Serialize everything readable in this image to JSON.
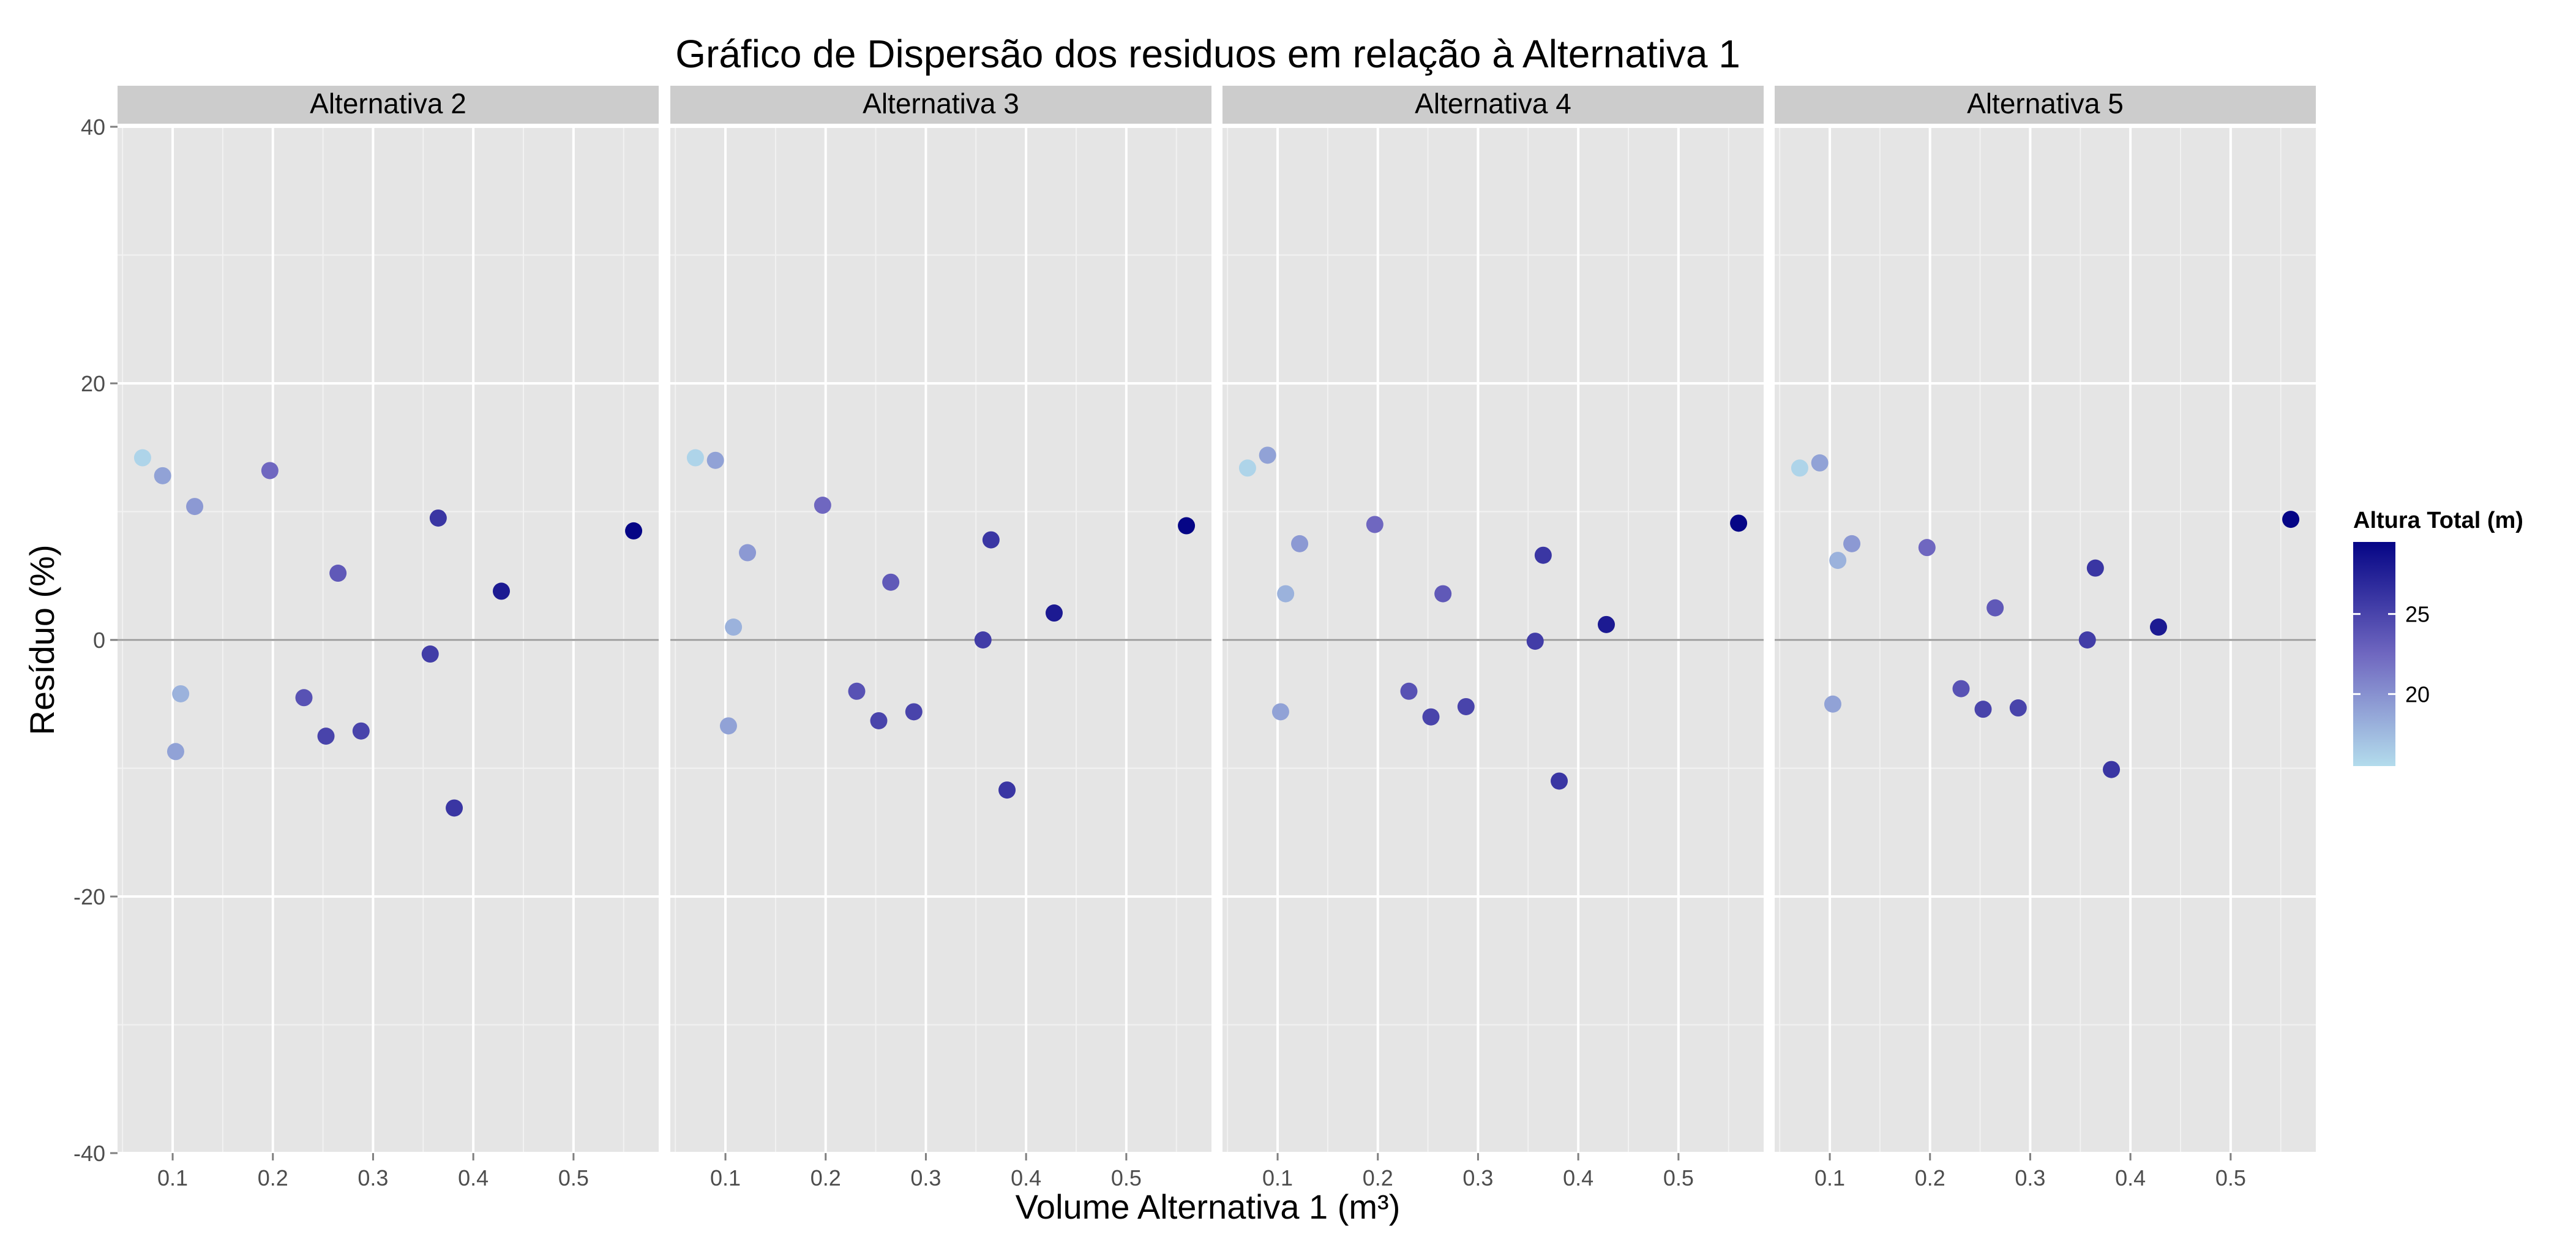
{
  "chart_data": {
    "type": "scatter",
    "title": "Gráfico de Dispersão  dos residuos em relação à Alternativa 1",
    "xlabel": "Volume Alternativa 1 (m³)",
    "ylabel": "Resíduo (%)",
    "xlim": [
      0.045,
      0.585
    ],
    "ylim": [
      -40,
      40
    ],
    "x_ticks": [
      0.1,
      0.2,
      0.3,
      0.4,
      0.5
    ],
    "x_tick_labels": [
      "0.1",
      "0.2",
      "0.3",
      "0.4",
      "0.5"
    ],
    "y_ticks": [
      -40,
      -20,
      0,
      20,
      40
    ],
    "y_tick_labels": [
      "-40",
      "-20",
      "0",
      "20",
      "40"
    ],
    "grid": true,
    "reference_line_y": 0,
    "legend": {
      "title": "Altura Total (m)",
      "position": "right",
      "type": "colorbar",
      "range": [
        15.5,
        29.5
      ],
      "ticks": [
        20,
        25
      ],
      "tick_labels": [
        "20",
        "25"
      ],
      "color_low": "#b3dcec",
      "color_mid": "#6f67c0",
      "color_high": "#050586"
    },
    "facets": [
      {
        "label": "Alternativa 2",
        "points": [
          {
            "x": 0.07,
            "y": 14.2,
            "h": 16
          },
          {
            "x": 0.09,
            "y": 12.8,
            "h": 19
          },
          {
            "x": 0.103,
            "y": -8.7,
            "h": 19
          },
          {
            "x": 0.108,
            "y": -4.2,
            "h": 18
          },
          {
            "x": 0.122,
            "y": 10.4,
            "h": 19.5
          },
          {
            "x": 0.197,
            "y": 13.2,
            "h": 22.5
          },
          {
            "x": 0.231,
            "y": -4.5,
            "h": 24
          },
          {
            "x": 0.253,
            "y": -7.5,
            "h": 25
          },
          {
            "x": 0.265,
            "y": 5.2,
            "h": 23.5
          },
          {
            "x": 0.288,
            "y": -7.1,
            "h": 25
          },
          {
            "x": 0.357,
            "y": -1.1,
            "h": 25.5
          },
          {
            "x": 0.365,
            "y": 9.5,
            "h": 26
          },
          {
            "x": 0.381,
            "y": -13.1,
            "h": 26
          },
          {
            "x": 0.428,
            "y": 3.8,
            "h": 28
          },
          {
            "x": 0.56,
            "y": 8.5,
            "h": 29.5
          }
        ]
      },
      {
        "label": "Alternativa 3",
        "points": [
          {
            "x": 0.07,
            "y": 14.2,
            "h": 16
          },
          {
            "x": 0.09,
            "y": 14.0,
            "h": 19
          },
          {
            "x": 0.103,
            "y": -6.7,
            "h": 19
          },
          {
            "x": 0.108,
            "y": 1.0,
            "h": 18
          },
          {
            "x": 0.122,
            "y": 6.8,
            "h": 19.5
          },
          {
            "x": 0.197,
            "y": 10.5,
            "h": 22.5
          },
          {
            "x": 0.231,
            "y": -4.0,
            "h": 24
          },
          {
            "x": 0.253,
            "y": -6.3,
            "h": 25
          },
          {
            "x": 0.265,
            "y": 4.5,
            "h": 23.5
          },
          {
            "x": 0.288,
            "y": -5.6,
            "h": 25
          },
          {
            "x": 0.357,
            "y": 0.0,
            "h": 25.5
          },
          {
            "x": 0.365,
            "y": 7.8,
            "h": 26
          },
          {
            "x": 0.381,
            "y": -11.7,
            "h": 26
          },
          {
            "x": 0.428,
            "y": 2.1,
            "h": 28
          },
          {
            "x": 0.56,
            "y": 8.9,
            "h": 29.5
          }
        ]
      },
      {
        "label": "Alternativa 4",
        "points": [
          {
            "x": 0.07,
            "y": 13.4,
            "h": 16
          },
          {
            "x": 0.09,
            "y": 14.4,
            "h": 19
          },
          {
            "x": 0.103,
            "y": -5.6,
            "h": 19
          },
          {
            "x": 0.108,
            "y": 3.6,
            "h": 18
          },
          {
            "x": 0.122,
            "y": 7.5,
            "h": 19.5
          },
          {
            "x": 0.197,
            "y": 9.0,
            "h": 22.5
          },
          {
            "x": 0.231,
            "y": -4.0,
            "h": 24
          },
          {
            "x": 0.253,
            "y": -6.0,
            "h": 25
          },
          {
            "x": 0.265,
            "y": 3.6,
            "h": 23.5
          },
          {
            "x": 0.288,
            "y": -5.2,
            "h": 25
          },
          {
            "x": 0.357,
            "y": -0.1,
            "h": 25.5
          },
          {
            "x": 0.365,
            "y": 6.6,
            "h": 26
          },
          {
            "x": 0.381,
            "y": -11.0,
            "h": 26
          },
          {
            "x": 0.428,
            "y": 1.2,
            "h": 28
          },
          {
            "x": 0.56,
            "y": 9.1,
            "h": 29.5
          }
        ]
      },
      {
        "label": "Alternativa 5",
        "points": [
          {
            "x": 0.07,
            "y": 13.4,
            "h": 16
          },
          {
            "x": 0.09,
            "y": 13.8,
            "h": 19
          },
          {
            "x": 0.103,
            "y": -5.0,
            "h": 19
          },
          {
            "x": 0.108,
            "y": 6.2,
            "h": 18
          },
          {
            "x": 0.122,
            "y": 7.5,
            "h": 19.5
          },
          {
            "x": 0.197,
            "y": 7.2,
            "h": 22.5
          },
          {
            "x": 0.231,
            "y": -3.8,
            "h": 24
          },
          {
            "x": 0.253,
            "y": -5.4,
            "h": 25
          },
          {
            "x": 0.265,
            "y": 2.5,
            "h": 23.5
          },
          {
            "x": 0.288,
            "y": -5.3,
            "h": 25
          },
          {
            "x": 0.357,
            "y": 0.0,
            "h": 25.5
          },
          {
            "x": 0.365,
            "y": 5.6,
            "h": 26
          },
          {
            "x": 0.381,
            "y": -10.1,
            "h": 26
          },
          {
            "x": 0.428,
            "y": 1.0,
            "h": 28
          },
          {
            "x": 0.56,
            "y": 9.4,
            "h": 29.5
          }
        ]
      }
    ]
  }
}
